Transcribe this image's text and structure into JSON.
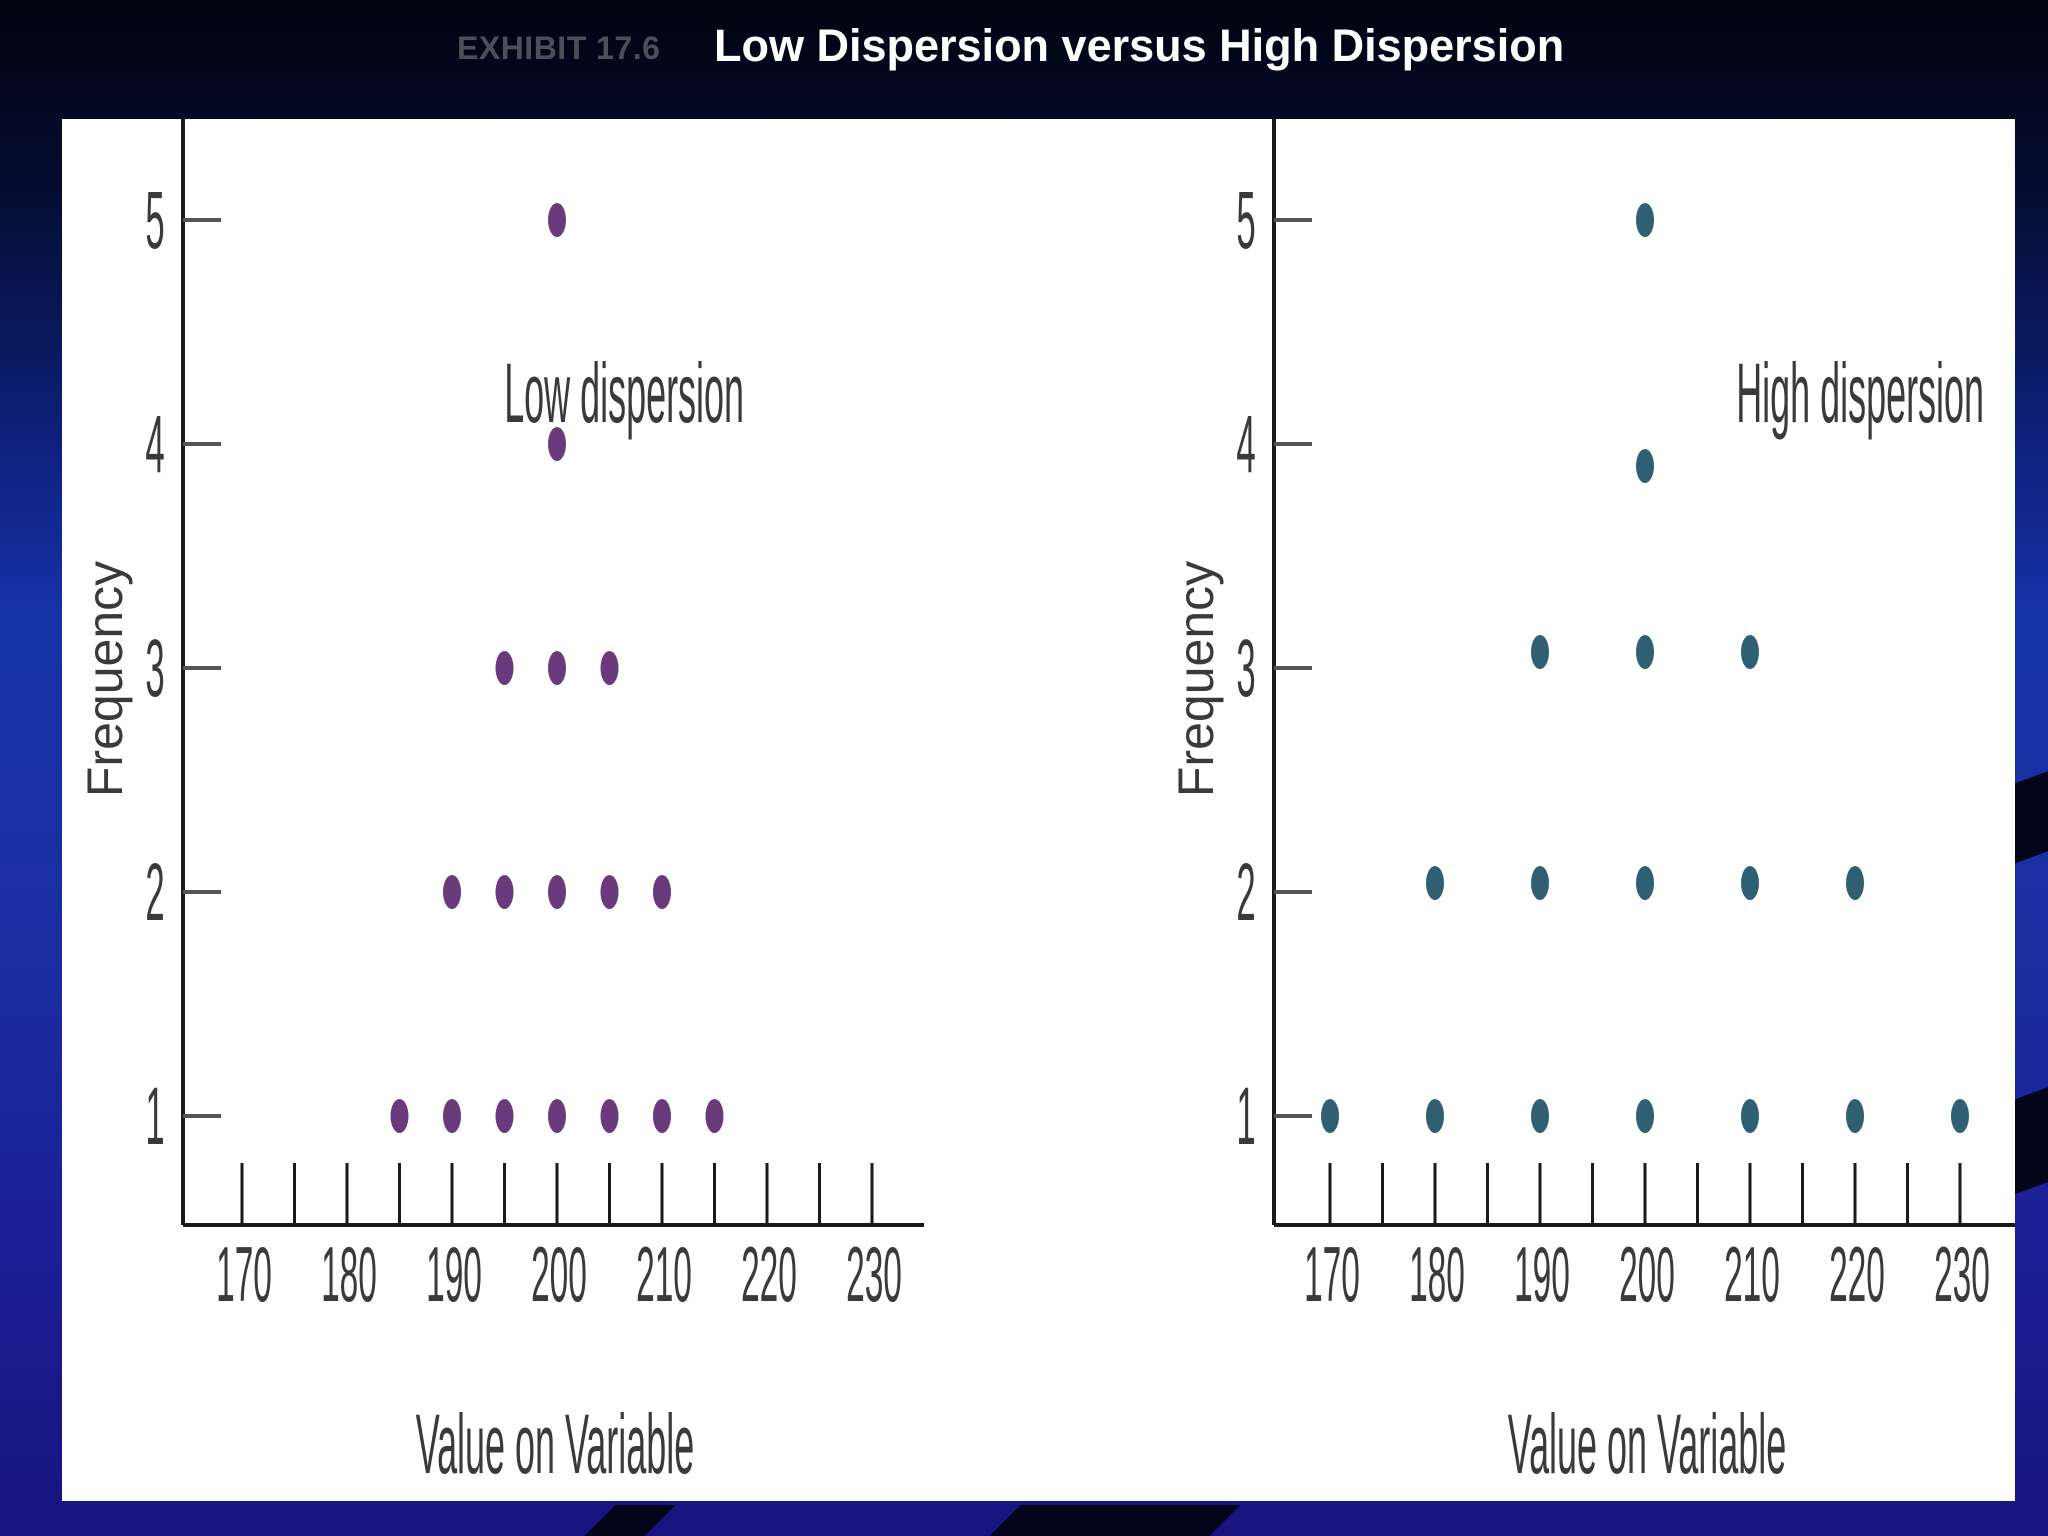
{
  "header": {
    "exhibit": "EXHIBIT 17.6",
    "title": "Low Dispersion versus High Dispersion"
  },
  "colors": {
    "low_dispersion_points": "#6b3a7d",
    "high_dispersion_points": "#2f5f73",
    "axis": "#1a1a1a",
    "background_panel": "#ffffff"
  },
  "chart_data": [
    {
      "type": "scatter",
      "title": "Low dispersion",
      "xlabel": "Value on Variable",
      "ylabel": "Frequency",
      "xticks": [
        170,
        180,
        190,
        200,
        210,
        220,
        230
      ],
      "yticks": [
        1,
        2,
        3,
        4,
        5
      ],
      "xlim": [
        164,
        235
      ],
      "ylim": [
        0.55,
        5.5
      ],
      "grid": false,
      "points": [
        {
          "x": 185,
          "y": 1
        },
        {
          "x": 190,
          "y": 1
        },
        {
          "x": 195,
          "y": 1
        },
        {
          "x": 200,
          "y": 1
        },
        {
          "x": 205,
          "y": 1
        },
        {
          "x": 210,
          "y": 1
        },
        {
          "x": 215,
          "y": 1
        },
        {
          "x": 190,
          "y": 2
        },
        {
          "x": 195,
          "y": 2
        },
        {
          "x": 200,
          "y": 2
        },
        {
          "x": 205,
          "y": 2
        },
        {
          "x": 210,
          "y": 2
        },
        {
          "x": 195,
          "y": 3
        },
        {
          "x": 200,
          "y": 3
        },
        {
          "x": 205,
          "y": 3
        },
        {
          "x": 200,
          "y": 4
        },
        {
          "x": 200,
          "y": 5
        }
      ]
    },
    {
      "type": "scatter",
      "title": "High dispersion",
      "xlabel": "Value on Variable",
      "ylabel": "Frequency",
      "xticks": [
        170,
        180,
        190,
        200,
        210,
        220,
        230
      ],
      "yticks": [
        1,
        2,
        3,
        4,
        5
      ],
      "xlim": [
        164,
        235
      ],
      "ylim": [
        0.55,
        5.5
      ],
      "grid": false,
      "points": [
        {
          "x": 170,
          "y": 1
        },
        {
          "x": 180,
          "y": 1
        },
        {
          "x": 190,
          "y": 1
        },
        {
          "x": 200,
          "y": 1
        },
        {
          "x": 210,
          "y": 1
        },
        {
          "x": 220,
          "y": 1
        },
        {
          "x": 230,
          "y": 1
        },
        {
          "x": 180,
          "y": 2
        },
        {
          "x": 190,
          "y": 2
        },
        {
          "x": 200,
          "y": 2
        },
        {
          "x": 210,
          "y": 2
        },
        {
          "x": 220,
          "y": 2
        },
        {
          "x": 190,
          "y": 3
        },
        {
          "x": 200,
          "y": 3
        },
        {
          "x": 210,
          "y": 3
        },
        {
          "x": 200,
          "y": 4
        },
        {
          "x": 200,
          "y": 5
        }
      ]
    }
  ]
}
